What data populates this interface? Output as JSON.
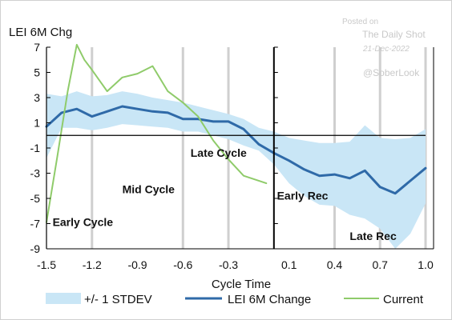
{
  "chart_data": {
    "type": "line",
    "title": "LEI 6M Chg",
    "xlabel": "Cycle Time",
    "ylabel": "",
    "xlim": [
      -1.5,
      1.0
    ],
    "ylim": [
      -9,
      7
    ],
    "x_ticks": [
      -1.5,
      -1.2,
      -0.9,
      -0.6,
      -0.3,
      0.1,
      0.4,
      0.7,
      1.0
    ],
    "x_tick_labels": [
      "-1.5",
      "-1.2",
      "-0.9",
      "-0.6",
      "-0.3",
      "0.1",
      "0.4",
      "0.7",
      "1.0"
    ],
    "y_ticks": [
      7,
      5,
      3,
      1,
      -1,
      -3,
      -5,
      -7,
      -9
    ],
    "y_tick_labels": [
      "7",
      "5",
      "3",
      "1",
      "-1",
      "-3",
      "-5",
      "-7",
      "-9"
    ],
    "vertical_gridlines_x": [
      -1.2,
      -0.6,
      -0.3,
      0.4,
      0.7,
      1.0
    ],
    "zero_line_x": 0.0,
    "band": {
      "name": "+/- 1 STDEV",
      "color": "#c9e6f6",
      "x": [
        -1.5,
        -1.4,
        -1.3,
        -1.2,
        -1.1,
        -1.0,
        -0.9,
        -0.8,
        -0.7,
        -0.6,
        -0.5,
        -0.4,
        -0.3,
        -0.2,
        -0.1,
        0.0,
        0.1,
        0.2,
        0.3,
        0.4,
        0.5,
        0.6,
        0.7,
        0.8,
        0.9,
        1.0
      ],
      "upper": [
        3.3,
        3.1,
        3.5,
        3.1,
        3.2,
        3.5,
        3.3,
        3.0,
        2.8,
        2.6,
        2.3,
        2.0,
        1.7,
        1.3,
        0.6,
        0.3,
        -0.2,
        -0.4,
        -0.6,
        -0.6,
        -0.5,
        0.8,
        -0.2,
        -0.3,
        -0.2,
        0.5
      ],
      "lower": [
        -1.8,
        0.6,
        0.6,
        0.4,
        0.6,
        0.9,
        0.8,
        0.7,
        0.6,
        0.3,
        0.3,
        0.0,
        -0.3,
        -0.8,
        -1.2,
        -2.3,
        -3.8,
        -4.8,
        -5.5,
        -5.6,
        -6.3,
        -6.6,
        -7.4,
        -9.0,
        -7.8,
        -5.4
      ]
    },
    "series": [
      {
        "name": "LEI 6M Change",
        "color": "#2f6aa8",
        "x": [
          -1.5,
          -1.4,
          -1.3,
          -1.2,
          -1.1,
          -1.0,
          -0.9,
          -0.8,
          -0.7,
          -0.6,
          -0.5,
          -0.4,
          -0.3,
          -0.2,
          -0.1,
          0.0,
          0.1,
          0.2,
          0.3,
          0.4,
          0.5,
          0.6,
          0.7,
          0.8,
          0.9,
          1.0
        ],
        "values": [
          0.7,
          1.8,
          2.1,
          1.5,
          1.9,
          2.3,
          2.1,
          1.9,
          1.8,
          1.3,
          1.3,
          1.1,
          1.1,
          0.5,
          -0.7,
          -1.4,
          -2.0,
          -2.7,
          -3.2,
          -3.1,
          -3.4,
          -2.8,
          -4.1,
          -4.6,
          -3.6,
          -2.6
        ]
      },
      {
        "name": "Current",
        "color": "#8fcb6a",
        "x": [
          -1.5,
          -1.43,
          -1.36,
          -1.3,
          -1.25,
          -1.2,
          -1.1,
          -1.0,
          -0.9,
          -0.8,
          -0.7,
          -0.6,
          -0.5,
          -0.4,
          -0.3,
          -0.2,
          -0.1,
          -0.05
        ],
        "values": [
          -6.9,
          -1.8,
          3.5,
          7.2,
          6.0,
          5.2,
          3.5,
          4.6,
          4.9,
          5.5,
          3.5,
          2.6,
          1.5,
          -0.4,
          -1.9,
          -3.2,
          -3.6,
          -3.8
        ]
      }
    ],
    "annotations": [
      {
        "text": "Early Cycle",
        "x": -1.46,
        "y": -7.2
      },
      {
        "text": "Mid Cycle",
        "x": -1.0,
        "y": -4.6
      },
      {
        "text": "Late Cycle",
        "x": -0.55,
        "y": -1.7
      },
      {
        "text": "Early Rec",
        "x": 0.02,
        "y": -5.1
      },
      {
        "text": "Late Rec",
        "x": 0.5,
        "y": -8.3
      }
    ],
    "legend": [
      "+/- 1 STDEV",
      "LEI 6M Change",
      "Current"
    ],
    "legend_position": "bottom",
    "grid": "vertical"
  },
  "watermark": {
    "posted_on": "Posted on",
    "source": "The Daily Shot",
    "date": "21-Dec-2022",
    "handle": "@SoberLook"
  }
}
